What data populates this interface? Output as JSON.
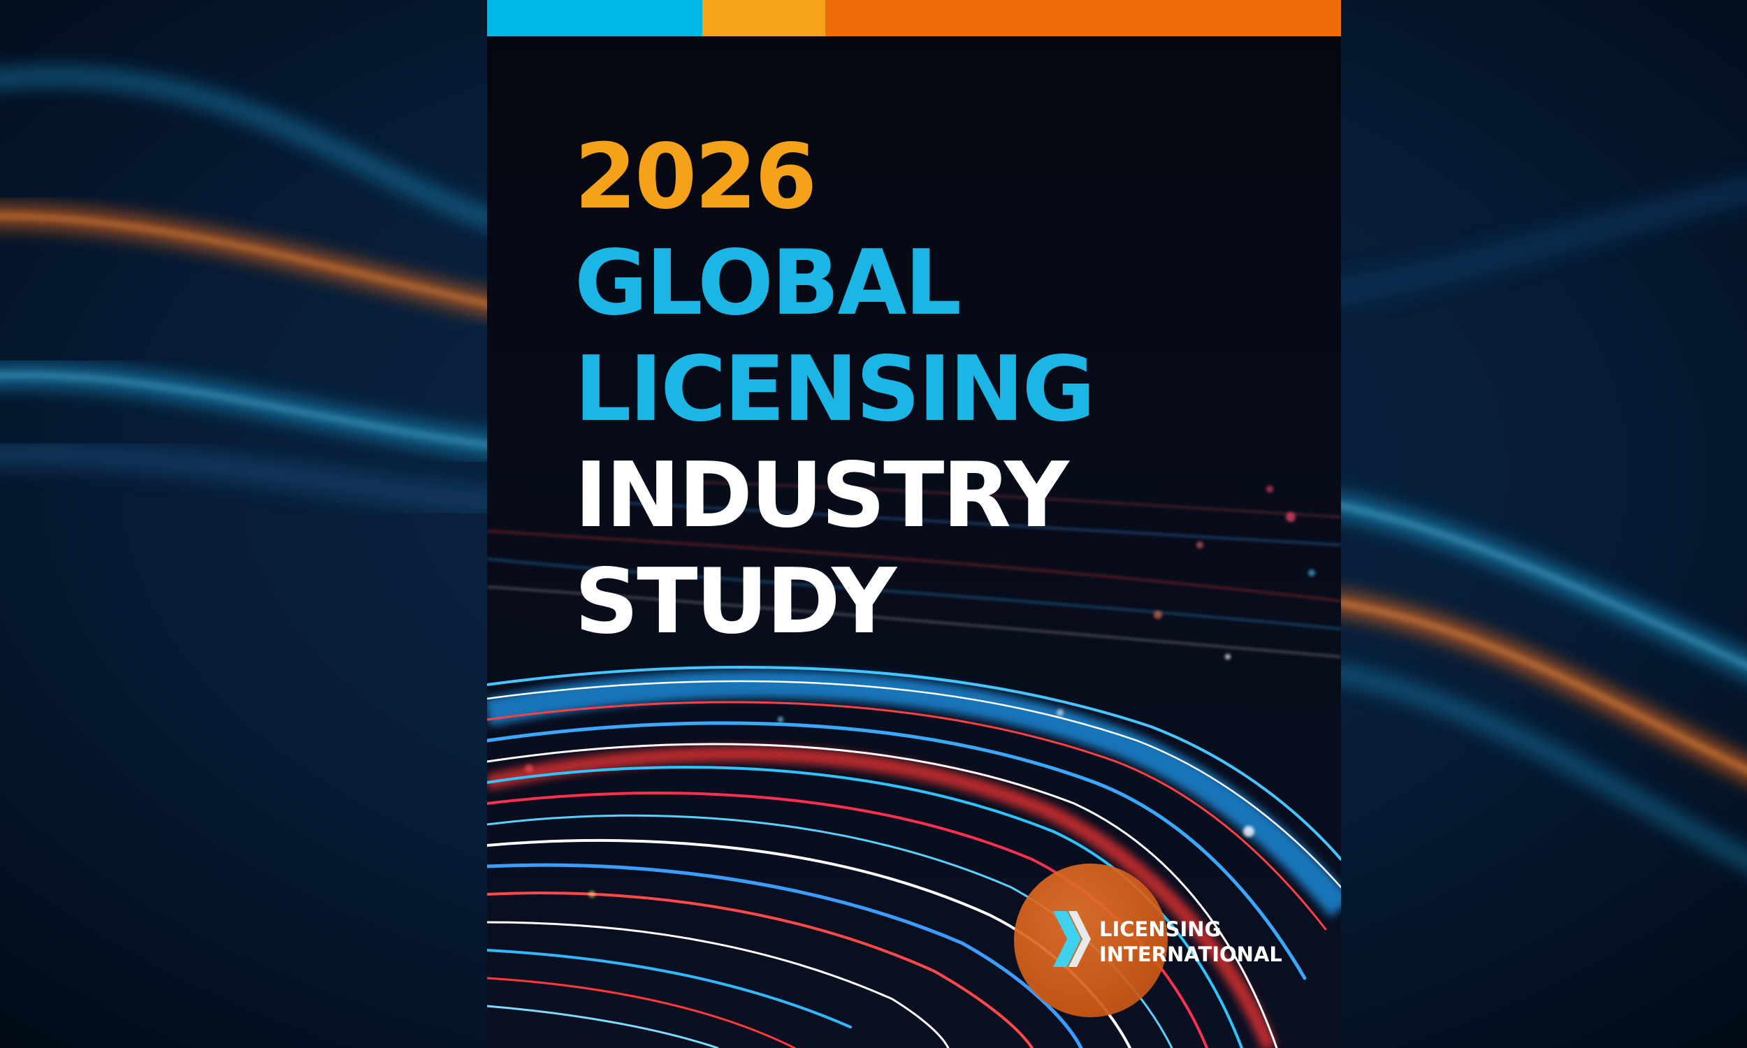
{
  "colors": {
    "bar_blue": "#00b8e6",
    "bar_yellow": "#f7a21b",
    "bar_orange": "#ef6a0a",
    "year": "#f5a21a",
    "blue_text": "#1cb6e6",
    "white_text": "#ffffff",
    "logo_orange": "#e06a22",
    "logo_chevron": "#3fd0ee"
  },
  "cover": {
    "title_lines": [
      {
        "text": "2026",
        "color": "#f5a21a"
      },
      {
        "text": "GLOBAL",
        "color": "#1cb6e6"
      },
      {
        "text": "LICENSING",
        "color": "#1cb6e6"
      },
      {
        "text": "INDUSTRY",
        "color": "#ffffff"
      },
      {
        "text": "STUDY",
        "color": "#ffffff"
      }
    ]
  },
  "logo": {
    "icon": "double-chevron-icon",
    "line1": "LICENSING",
    "line2": "INTERNATIONAL"
  }
}
